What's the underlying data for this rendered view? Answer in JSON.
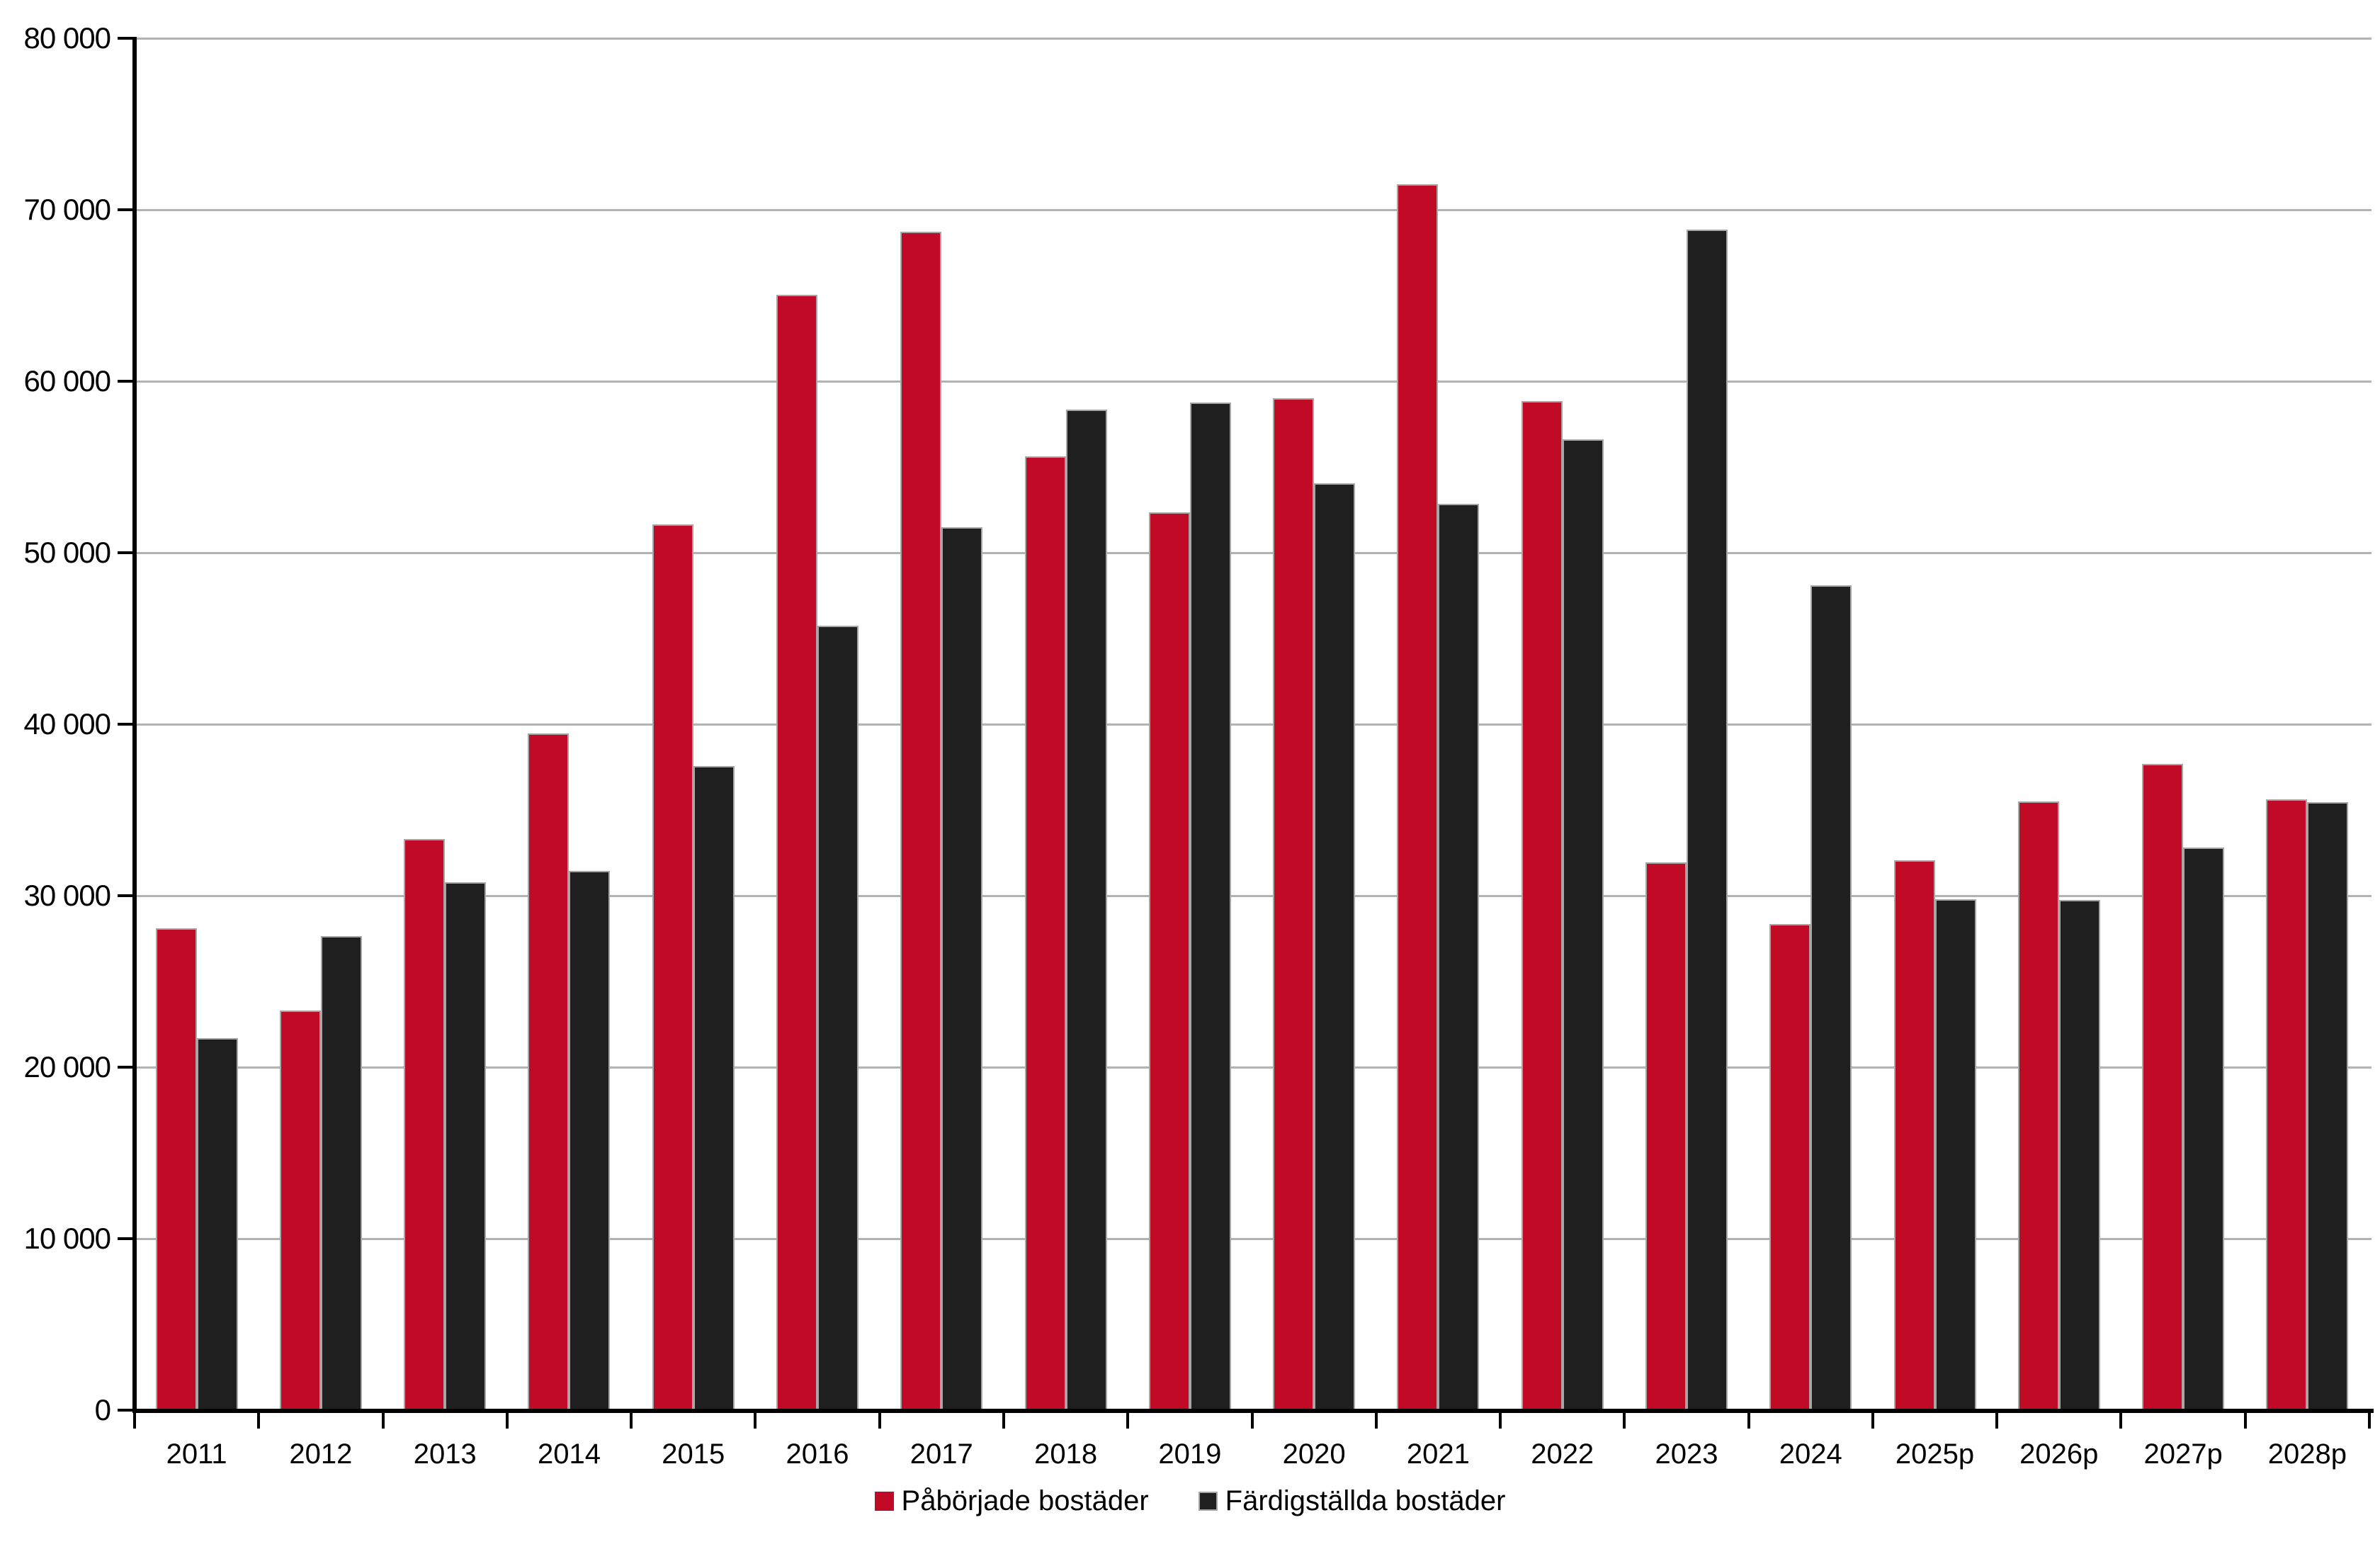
{
  "chart_data": {
    "type": "bar",
    "title": "",
    "categories": [
      "2011",
      "2012",
      "2013",
      "2014",
      "2015",
      "2016",
      "2017",
      "2018",
      "2019",
      "2020",
      "2021",
      "2022",
      "2023",
      "2024",
      "2025p",
      "2026p",
      "2027p",
      "2028p"
    ],
    "series": [
      {
        "name": "Påbörjade bostäder",
        "color": "#C10B26",
        "values": [
          28100,
          23300,
          33300,
          39450,
          51650,
          65050,
          68700,
          55600,
          52350,
          59000,
          71500,
          58850,
          31950,
          28350,
          32050,
          35500,
          37700,
          35600
        ]
      },
      {
        "name": "Färdigställda bostäder",
        "color": "#1F1F1F",
        "values": [
          21700,
          27650,
          30800,
          31450,
          37550,
          45750,
          51500,
          58350,
          58750,
          54050,
          52850,
          56600,
          68850,
          48100,
          29800,
          29750,
          32800,
          35450
        ]
      }
    ],
    "xlabel": "",
    "ylabel": "",
    "ylim": [
      0,
      80000
    ],
    "y_tick_step": 10000,
    "y_tick_labels": [
      "0",
      "10 000",
      "20 000",
      "30 000",
      "40 000",
      "50 000",
      "60 000",
      "70 000",
      "80 000"
    ],
    "grid": true,
    "legend_position": "bottom-center"
  },
  "style": {
    "grid_color": "#B3B3B3",
    "axis_color": "#000000",
    "bar_border_color": "#A6A6A6",
    "background": "#FFFFFF",
    "text_color": "#000000"
  }
}
